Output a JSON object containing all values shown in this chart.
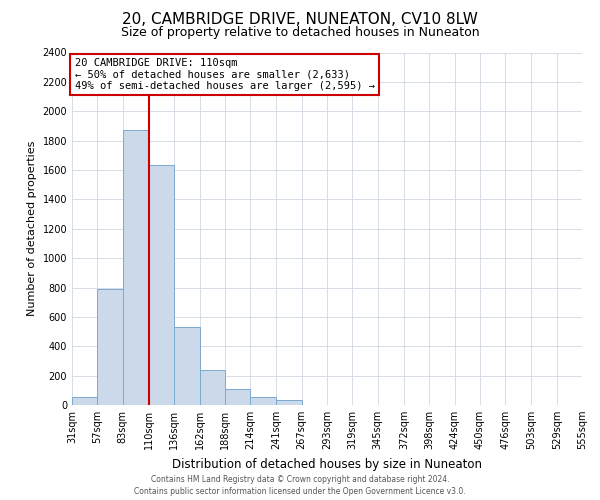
{
  "title": "20, CAMBRIDGE DRIVE, NUNEATON, CV10 8LW",
  "subtitle": "Size of property relative to detached houses in Nuneaton",
  "xlabel": "Distribution of detached houses by size in Nuneaton",
  "ylabel": "Number of detached properties",
  "bar_edges": [
    31,
    57,
    83,
    110,
    136,
    162,
    188,
    214,
    241,
    267,
    293,
    319,
    345,
    372,
    398,
    424,
    450,
    476,
    503,
    529,
    555
  ],
  "bar_heights": [
    55,
    790,
    1870,
    1635,
    530,
    235,
    110,
    55,
    35,
    0,
    0,
    0,
    0,
    0,
    0,
    0,
    0,
    0,
    0,
    0
  ],
  "bar_color": "#ccd9ea",
  "bar_edgecolor": "#7aaacf",
  "vline_x": 110,
  "vline_color": "#cc0000",
  "ylim": [
    0,
    2400
  ],
  "yticks": [
    0,
    200,
    400,
    600,
    800,
    1000,
    1200,
    1400,
    1600,
    1800,
    2000,
    2200,
    2400
  ],
  "annotation_title": "20 CAMBRIDGE DRIVE: 110sqm",
  "annotation_line1": "← 50% of detached houses are smaller (2,633)",
  "annotation_line2": "49% of semi-detached houses are larger (2,595) →",
  "annotation_box_color": "#ffffff",
  "annotation_box_edgecolor": "#cc0000",
  "footer_line1": "Contains HM Land Registry data © Crown copyright and database right 2024.",
  "footer_line2": "Contains public sector information licensed under the Open Government Licence v3.0.",
  "background_color": "#ffffff",
  "grid_color": "#d0d8e4",
  "title_fontsize": 11,
  "subtitle_fontsize": 9,
  "ylabel_fontsize": 8,
  "xlabel_fontsize": 8.5,
  "tick_label_fontsize": 7,
  "annotation_fontsize": 7.5,
  "footer_fontsize": 5.5
}
